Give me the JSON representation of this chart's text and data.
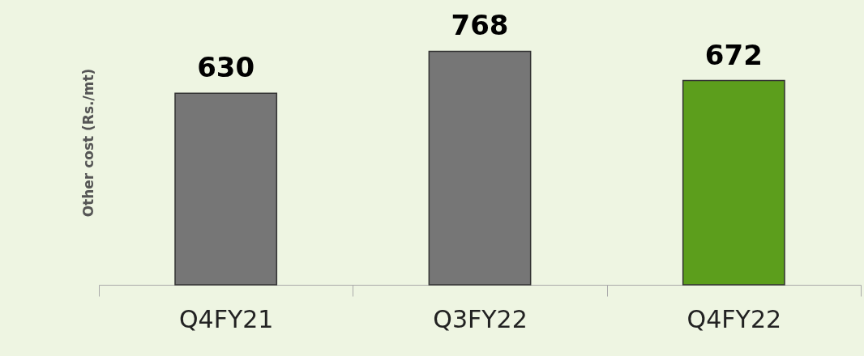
{
  "chart_data": {
    "type": "bar",
    "ylabel": "Other cost (Rs./mt)",
    "categories": [
      "Q4FY21",
      "Q3FY22",
      "Q4FY22"
    ],
    "values": [
      630,
      768,
      672
    ],
    "colors": [
      "#767676",
      "#767676",
      "#5c9e1c"
    ],
    "data_labels": true
  }
}
